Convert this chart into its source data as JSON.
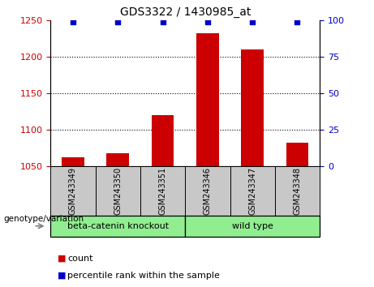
{
  "title": "GDS3322 / 1430985_at",
  "samples": [
    "GSM243349",
    "GSM243350",
    "GSM243351",
    "GSM243346",
    "GSM243347",
    "GSM243348"
  ],
  "bar_values": [
    1062,
    1068,
    1120,
    1232,
    1210,
    1082
  ],
  "percentile_values": [
    99,
    99,
    99,
    99,
    99,
    99
  ],
  "ylim_left": [
    1050,
    1250
  ],
  "ylim_right": [
    0,
    100
  ],
  "yticks_left": [
    1050,
    1100,
    1150,
    1200,
    1250
  ],
  "yticks_right": [
    0,
    25,
    50,
    75,
    100
  ],
  "bar_color": "#cc0000",
  "dot_color": "#0000cc",
  "bar_width": 0.5,
  "group1_label": "beta-catenin knockout",
  "group2_label": "wild type",
  "group_color": "#90ee90",
  "group_label_text": "genotype/variation",
  "legend_count_label": "count",
  "legend_percentile_label": "percentile rank within the sample",
  "bg_color": "#ffffff",
  "panel_bg": "#c8c8c8",
  "left_tick_color": "#cc0000",
  "right_tick_color": "#0000cc",
  "dotted_lines": [
    1100,
    1150,
    1200
  ],
  "percentile_pct": 99
}
